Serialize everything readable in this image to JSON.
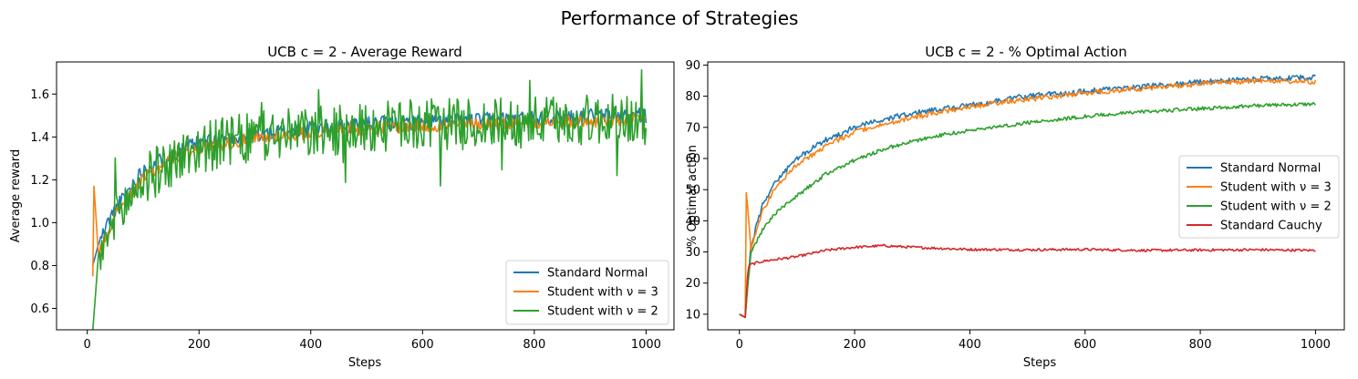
{
  "figure": {
    "suptitle": "Performance of Strategies"
  },
  "colors": {
    "standard_normal": "#1f77b4",
    "student_3": "#ff7f0e",
    "student_2": "#2ca02c",
    "cauchy": "#d62728"
  },
  "chart_data": [
    {
      "type": "line",
      "title": "UCB c = 2 - Average Reward",
      "xlabel": "Steps",
      "ylabel": "Average reward",
      "xlim": [
        -55,
        1050
      ],
      "ylim": [
        0.5,
        1.75
      ],
      "xticks": [
        0,
        200,
        400,
        600,
        800,
        1000
      ],
      "yticks": [
        0.6,
        0.8,
        1.0,
        1.2,
        1.4,
        1.6
      ],
      "ytick_labels": [
        "0.6",
        "0.8",
        "1.0",
        "1.2",
        "1.4",
        "1.6"
      ],
      "grid": false,
      "legend": "lower-right",
      "series": [
        {
          "name": "Standard Normal",
          "x": [
            10,
            20,
            40,
            60,
            100,
            150,
            200,
            300,
            400,
            500,
            600,
            700,
            800,
            900,
            1000
          ],
          "values": [
            0.8,
            0.9,
            1.02,
            1.1,
            1.25,
            1.32,
            1.37,
            1.41,
            1.44,
            1.46,
            1.47,
            1.48,
            1.49,
            1.5,
            1.5
          ]
        },
        {
          "name": "Student with ν = 3",
          "x": [
            10,
            12,
            20,
            40,
            60,
            100,
            150,
            200,
            300,
            400,
            500,
            600,
            700,
            800,
            900,
            1000
          ],
          "values": [
            0.75,
            1.17,
            0.85,
            0.98,
            1.08,
            1.2,
            1.3,
            1.35,
            1.39,
            1.42,
            1.44,
            1.45,
            1.46,
            1.47,
            1.47,
            1.48
          ]
        },
        {
          "name": "Student with ν = 2",
          "x": [
            10,
            20,
            40,
            60,
            100,
            150,
            200,
            300,
            400,
            500,
            600,
            700,
            800,
            900,
            1000
          ],
          "values": [
            0.5,
            0.85,
            0.95,
            1.05,
            1.2,
            1.28,
            1.35,
            1.4,
            1.42,
            1.44,
            1.46,
            1.46,
            1.47,
            1.48,
            1.48
          ]
        }
      ]
    },
    {
      "type": "line",
      "title": "UCB c = 2 - % Optimal Action",
      "xlabel": "Steps",
      "ylabel": "% Optimal action",
      "xlim": [
        -55,
        1050
      ],
      "ylim": [
        5,
        91
      ],
      "xticks": [
        0,
        200,
        400,
        600,
        800,
        1000
      ],
      "yticks": [
        10,
        20,
        30,
        40,
        50,
        60,
        70,
        80,
        90
      ],
      "grid": false,
      "legend": "center-right",
      "series": [
        {
          "name": "Standard Normal",
          "x": [
            0,
            10,
            20,
            40,
            60,
            100,
            150,
            200,
            250,
            300,
            350,
            400,
            450,
            500,
            600,
            700,
            800,
            900,
            1000
          ],
          "values": [
            10,
            9,
            32,
            45,
            52,
            60,
            66,
            70,
            72.5,
            74.5,
            76,
            77,
            78.5,
            80,
            81.5,
            83,
            84.5,
            85.5,
            86
          ]
        },
        {
          "name": "Student with ν = 3",
          "x": [
            0,
            10,
            12,
            20,
            40,
            60,
            100,
            150,
            200,
            250,
            300,
            350,
            400,
            450,
            500,
            600,
            700,
            800,
            900,
            1000
          ],
          "values": [
            10,
            9,
            49,
            31,
            43,
            50,
            58,
            64,
            68.5,
            71,
            73,
            75,
            76.5,
            78,
            79,
            81,
            82.5,
            84,
            85,
            84.5
          ]
        },
        {
          "name": "Student with ν = 2",
          "x": [
            0,
            10,
            20,
            40,
            60,
            100,
            150,
            200,
            250,
            300,
            350,
            400,
            500,
            600,
            700,
            800,
            900,
            1000
          ],
          "values": [
            10,
            9,
            30,
            37,
            42,
            48,
            55,
            59.5,
            63,
            65.5,
            67.5,
            69,
            71.5,
            73.5,
            75,
            76,
            77,
            77.5
          ]
        },
        {
          "name": "Standard Cauchy",
          "x": [
            0,
            10,
            15,
            20,
            40,
            60,
            100,
            150,
            200,
            250,
            300,
            400,
            500,
            600,
            700,
            800,
            900,
            1000
          ],
          "values": [
            10,
            9,
            25,
            26,
            27,
            27.5,
            28.5,
            30.5,
            31.5,
            32,
            31.5,
            30.8,
            30.7,
            30.8,
            30.5,
            30.6,
            30.7,
            30.5
          ]
        }
      ]
    }
  ]
}
